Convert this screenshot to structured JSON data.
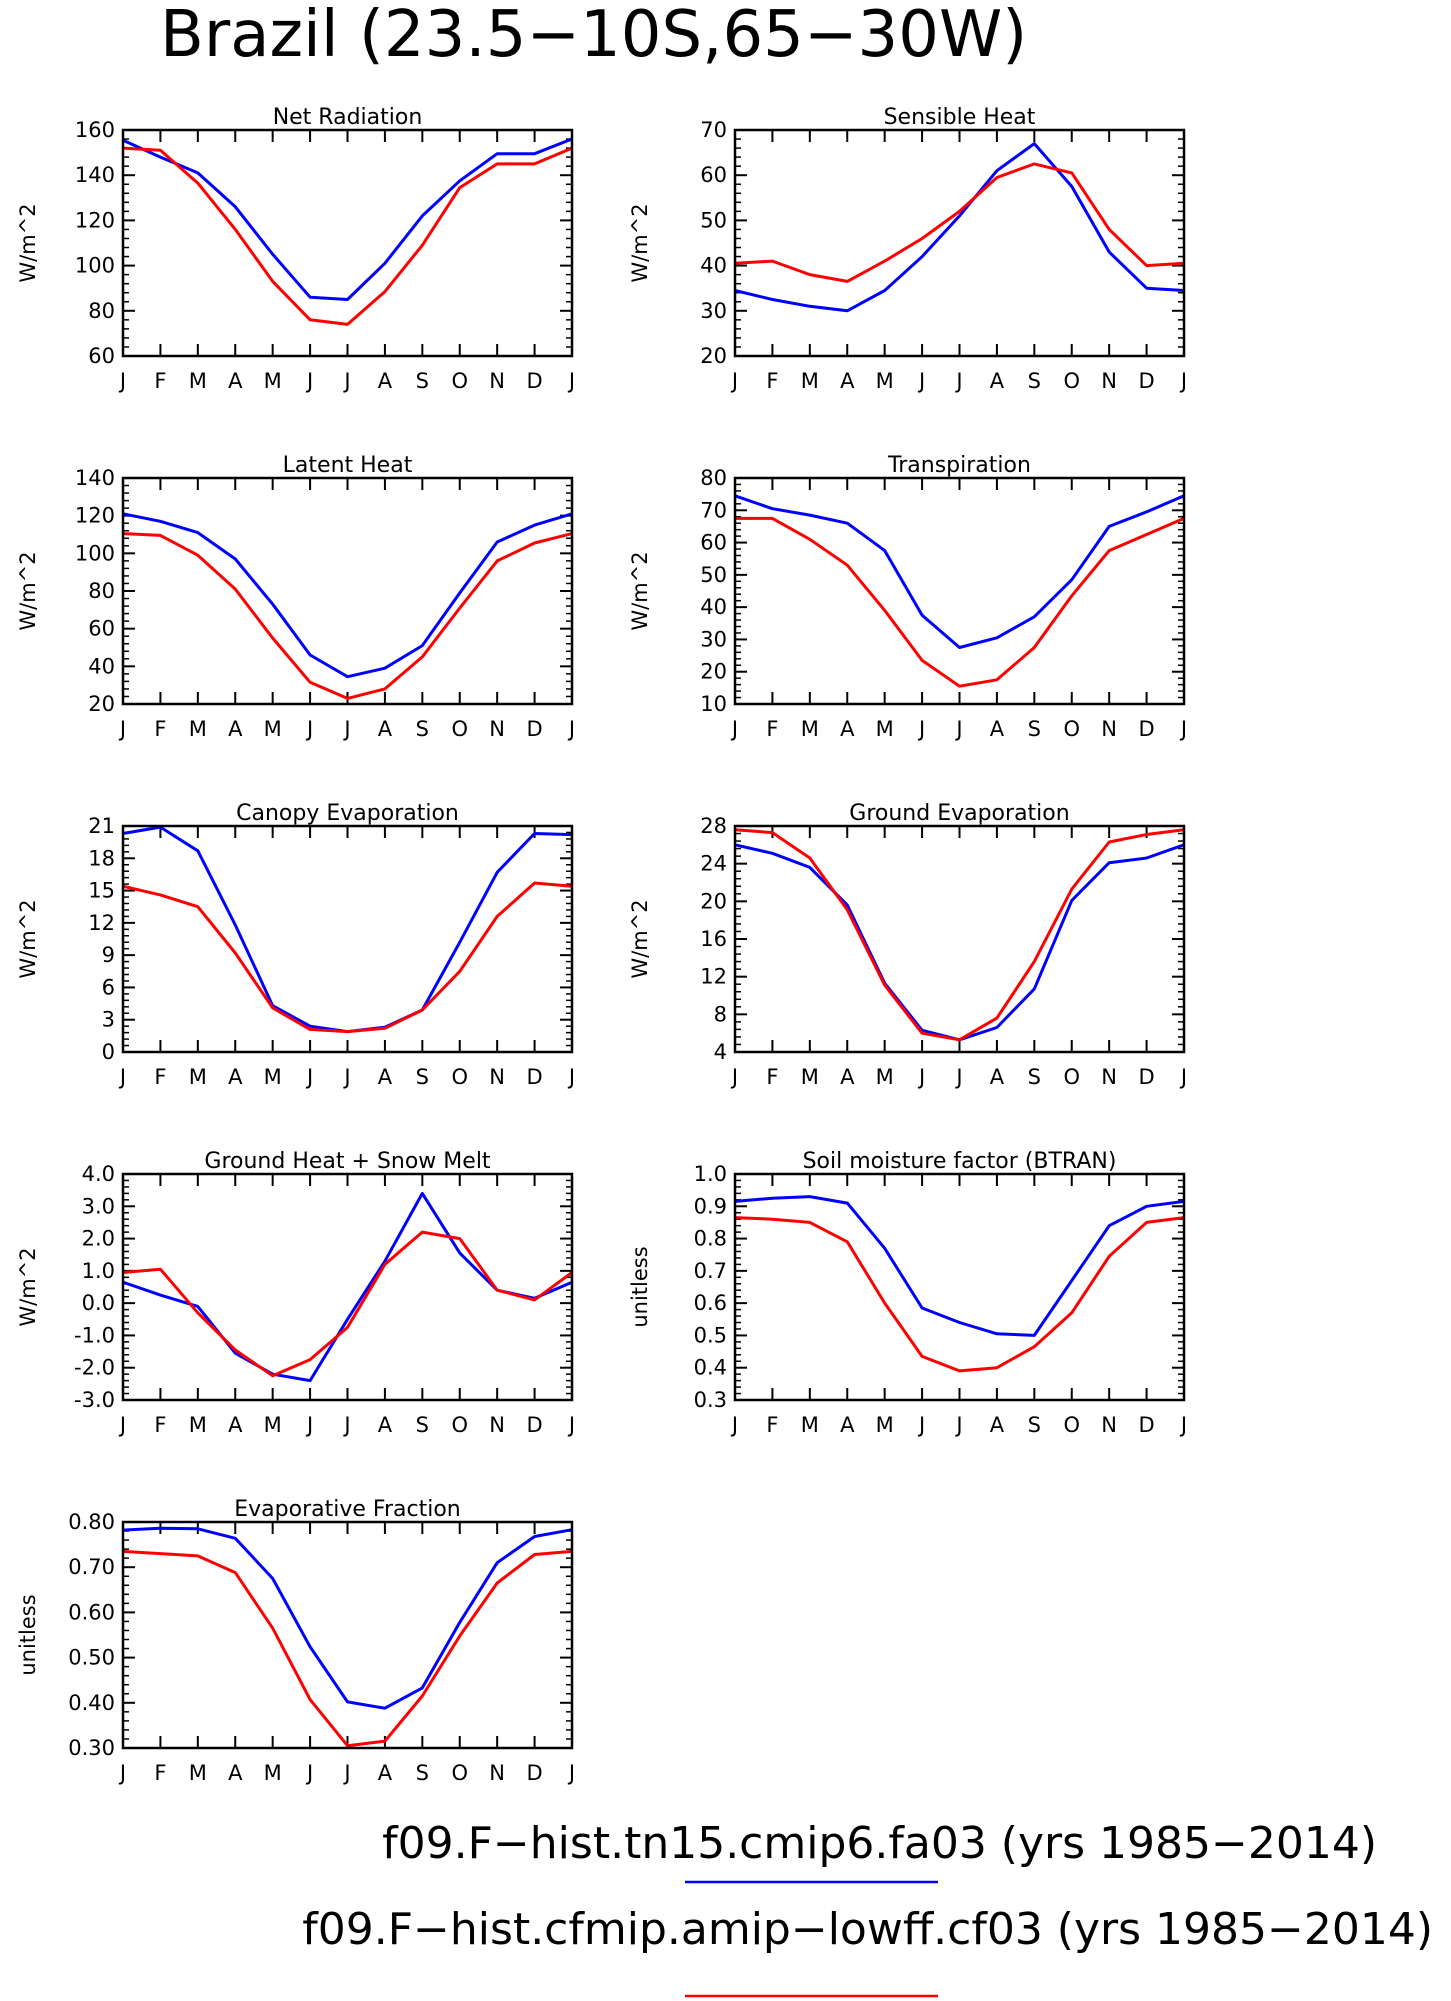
{
  "title": "Brazil (23.5−10S,65−30W)",
  "colors": {
    "series_1": "#0000ff",
    "series_2": "#ff0000",
    "axis": "#000000"
  },
  "legend": [
    {
      "label": "f09.F−hist.tn15.cmip6.fa03 (yrs 1985−2014)",
      "color": "#0000ff"
    },
    {
      "label": "f09.F−hist.cfmip.amip−lowff.cf03 (yrs 1985−2014)",
      "color": "#ff0000"
    }
  ],
  "chart_data": [
    {
      "type": "line",
      "title": "Net Radiation",
      "ylabel": "W/m^2",
      "categories": [
        "J",
        "F",
        "M",
        "A",
        "M",
        "J",
        "J",
        "A",
        "S",
        "O",
        "N",
        "D",
        "J"
      ],
      "ylim": [
        60,
        160
      ],
      "yticks": [
        60,
        80,
        100,
        120,
        140,
        160
      ],
      "ytick_labels": [
        "60",
        "80",
        "100",
        "120",
        "140",
        "160"
      ],
      "series": [
        {
          "values": [
            155.5,
            148,
            141,
            126,
            105,
            86,
            85,
            101,
            122,
            137.5,
            149.5,
            149.5,
            156
          ]
        },
        {
          "values": [
            152,
            151,
            136.5,
            116,
            93,
            76,
            74,
            88.5,
            109,
            134.5,
            145,
            145,
            152
          ]
        }
      ]
    },
    {
      "type": "line",
      "title": "Sensible Heat",
      "ylabel": "W/m^2",
      "categories": [
        "J",
        "F",
        "M",
        "A",
        "M",
        "J",
        "J",
        "A",
        "S",
        "O",
        "N",
        "D",
        "J"
      ],
      "ylim": [
        20,
        70
      ],
      "yticks": [
        20,
        30,
        40,
        50,
        60,
        70
      ],
      "ytick_labels": [
        "20",
        "30",
        "40",
        "50",
        "60",
        "70"
      ],
      "series": [
        {
          "values": [
            34.5,
            32.5,
            31,
            30,
            34.5,
            42,
            51,
            61,
            67,
            57.5,
            43,
            35,
            34.5
          ]
        },
        {
          "values": [
            40.5,
            41,
            38,
            36.5,
            41,
            46,
            52,
            59.5,
            62.5,
            60.5,
            48,
            40,
            40.5
          ]
        }
      ]
    },
    {
      "type": "line",
      "title": "Latent Heat",
      "ylabel": "W/m^2",
      "categories": [
        "J",
        "F",
        "M",
        "A",
        "M",
        "J",
        "J",
        "A",
        "S",
        "O",
        "N",
        "D",
        "J"
      ],
      "ylim": [
        20,
        140
      ],
      "yticks": [
        20,
        40,
        60,
        80,
        100,
        120,
        140
      ],
      "ytick_labels": [
        "20",
        "40",
        "60",
        "80",
        "100",
        "120",
        "140"
      ],
      "series": [
        {
          "values": [
            121,
            117,
            111,
            97,
            73,
            46,
            34.5,
            39,
            51,
            79,
            106,
            115,
            121
          ]
        },
        {
          "values": [
            110.5,
            109.5,
            99,
            81,
            55,
            31.5,
            23,
            28,
            45,
            71,
            96,
            105.5,
            110.5
          ]
        }
      ]
    },
    {
      "type": "line",
      "title": "Transpiration",
      "ylabel": "W/m^2",
      "categories": [
        "J",
        "F",
        "M",
        "A",
        "M",
        "J",
        "J",
        "A",
        "S",
        "O",
        "N",
        "D",
        "J"
      ],
      "ylim": [
        10,
        80
      ],
      "yticks": [
        10,
        20,
        30,
        40,
        50,
        60,
        70,
        80
      ],
      "ytick_labels": [
        "10",
        "20",
        "30",
        "40",
        "50",
        "60",
        "70",
        "80"
      ],
      "series": [
        {
          "values": [
            74.5,
            70.5,
            68.5,
            66,
            57.5,
            37.5,
            27.5,
            30.5,
            37,
            48.5,
            65,
            69.5,
            74.5
          ]
        },
        {
          "values": [
            67.5,
            67.5,
            61,
            53,
            39,
            23.5,
            15.5,
            17.5,
            27.5,
            43.5,
            57.5,
            62.5,
            67.5
          ]
        }
      ]
    },
    {
      "type": "line",
      "title": "Canopy Evaporation",
      "ylabel": "W/m^2",
      "categories": [
        "J",
        "F",
        "M",
        "A",
        "M",
        "J",
        "J",
        "A",
        "S",
        "O",
        "N",
        "D",
        "J"
      ],
      "ylim": [
        0,
        21
      ],
      "yticks": [
        0,
        3,
        6,
        9,
        12,
        15,
        18,
        21
      ],
      "ytick_labels": [
        "0",
        "3",
        "6",
        "9",
        "12",
        "15",
        "18",
        "21"
      ],
      "series": [
        {
          "values": [
            20.3,
            20.9,
            18.7,
            11.8,
            4.3,
            2.4,
            1.9,
            2.3,
            3.9,
            10.2,
            16.7,
            20.3,
            20.2
          ]
        },
        {
          "values": [
            15.4,
            14.6,
            13.5,
            9.2,
            4.1,
            2.1,
            1.9,
            2.2,
            3.9,
            7.5,
            12.6,
            15.7,
            15.4
          ]
        }
      ]
    },
    {
      "type": "line",
      "title": "Ground Evaporation",
      "ylabel": "W/m^2",
      "categories": [
        "J",
        "F",
        "M",
        "A",
        "M",
        "J",
        "J",
        "A",
        "S",
        "O",
        "N",
        "D",
        "J"
      ],
      "ylim": [
        4,
        28
      ],
      "yticks": [
        4,
        8,
        12,
        16,
        20,
        24,
        28
      ],
      "ytick_labels": [
        "4",
        "8",
        "12",
        "16",
        "20",
        "24",
        "28"
      ],
      "series": [
        {
          "values": [
            26,
            25.1,
            23.6,
            19.6,
            11.3,
            6.3,
            5.3,
            6.6,
            10.7,
            20.1,
            24.1,
            24.6,
            26
          ]
        },
        {
          "values": [
            27.6,
            27.3,
            24.6,
            19.1,
            11.1,
            6,
            5.3,
            7.6,
            13.6,
            21.3,
            26.3,
            27.1,
            27.6
          ]
        }
      ]
    },
    {
      "type": "line",
      "title": "Ground Heat + Snow Melt",
      "ylabel": "W/m^2",
      "categories": [
        "J",
        "F",
        "M",
        "A",
        "M",
        "J",
        "J",
        "A",
        "S",
        "O",
        "N",
        "D",
        "J"
      ],
      "ylim": [
        -3,
        4
      ],
      "yticks": [
        -3,
        -2,
        -1,
        0,
        1,
        2,
        3,
        4
      ],
      "ytick_labels": [
        "-3.0",
        "-2.0",
        "-1.0",
        "0.0",
        "1.0",
        "2.0",
        "3.0",
        "4.0"
      ],
      "series": [
        {
          "values": [
            0.65,
            0.25,
            -0.1,
            -1.55,
            -2.2,
            -2.4,
            -0.5,
            1.3,
            3.4,
            1.55,
            0.4,
            0.15,
            0.65
          ]
        },
        {
          "values": [
            0.95,
            1.05,
            -0.3,
            -1.45,
            -2.25,
            -1.75,
            -0.75,
            1.2,
            2.2,
            2.0,
            0.4,
            0.1,
            0.95
          ]
        }
      ]
    },
    {
      "type": "line",
      "title": "Soil moisture factor (BTRAN)",
      "ylabel": "unitless",
      "categories": [
        "J",
        "F",
        "M",
        "A",
        "M",
        "J",
        "J",
        "A",
        "S",
        "O",
        "N",
        "D",
        "J"
      ],
      "ylim": [
        0.3,
        1.0
      ],
      "yticks": [
        0.3,
        0.4,
        0.5,
        0.6,
        0.7,
        0.8,
        0.9,
        1.0
      ],
      "ytick_labels": [
        "0.3",
        "0.4",
        "0.5",
        "0.6",
        "0.7",
        "0.8",
        "0.9",
        "1.0"
      ],
      "series": [
        {
          "values": [
            0.915,
            0.925,
            0.93,
            0.91,
            0.77,
            0.585,
            0.54,
            0.505,
            0.5,
            0.67,
            0.84,
            0.9,
            0.915
          ]
        },
        {
          "values": [
            0.865,
            0.86,
            0.85,
            0.79,
            0.6,
            0.435,
            0.39,
            0.4,
            0.465,
            0.57,
            0.745,
            0.85,
            0.865
          ]
        }
      ]
    },
    {
      "type": "line",
      "title": "Evaporative Fraction",
      "ylabel": "unitless",
      "categories": [
        "J",
        "F",
        "M",
        "A",
        "M",
        "J",
        "J",
        "A",
        "S",
        "O",
        "N",
        "D",
        "J"
      ],
      "ylim": [
        0.3,
        0.8
      ],
      "yticks": [
        0.3,
        0.4,
        0.5,
        0.6,
        0.7,
        0.8
      ],
      "ytick_labels": [
        "0.30",
        "0.40",
        "0.50",
        "0.60",
        "0.70",
        "0.80"
      ],
      "series": [
        {
          "values": [
            0.782,
            0.786,
            0.785,
            0.764,
            0.675,
            0.524,
            0.402,
            0.388,
            0.433,
            0.578,
            0.71,
            0.768,
            0.783
          ]
        },
        {
          "values": [
            0.735,
            0.73,
            0.725,
            0.688,
            0.565,
            0.407,
            0.305,
            0.315,
            0.415,
            0.548,
            0.665,
            0.728,
            0.735
          ]
        }
      ]
    }
  ]
}
